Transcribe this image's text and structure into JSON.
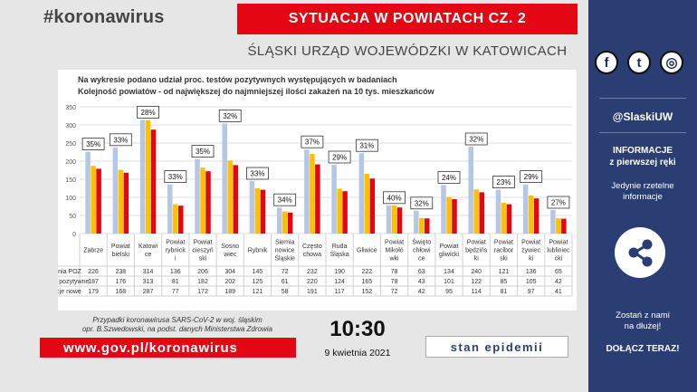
{
  "header": {
    "hashtag": "#koronawirus",
    "title": "SYTUACJA W POWIATACH  CZ. 2",
    "subtitle": "ŚLĄSKI URZĄD WOJEWÓDZKI W KATOWICACH"
  },
  "chart_data": {
    "type": "bar",
    "note_line1": "Na wykresie podano udział proc. testów pozytywnych występujących w badaniach",
    "note_line2": "Kolejność powiatów - od największej do najmniejszej ilości zakażeń na 10 tys. mieszkańców",
    "ylim": [
      0,
      350
    ],
    "yticks": [
      0,
      50,
      100,
      150,
      200,
      250,
      300,
      350
    ],
    "grid": true,
    "categories": [
      [
        "Zabrze"
      ],
      [
        "Powiat",
        "bielski"
      ],
      [
        "Katowi",
        "ce"
      ],
      [
        "Powiat",
        "rybnick",
        "i"
      ],
      [
        "Powiat",
        "cieszyń",
        "ski"
      ],
      [
        "Sosno",
        "wiec"
      ],
      [
        "Rybnik"
      ],
      [
        "Siemia",
        "nowice",
        "Śląskie"
      ],
      [
        "Często",
        "chowa"
      ],
      [
        "Ruda",
        "Śląska"
      ],
      [
        "Gliwice"
      ],
      [
        "Powiat",
        "Mikołó",
        "wki"
      ],
      [
        "Święto",
        "chłowi",
        "ce"
      ],
      [
        "Powiat",
        "gliwicki"
      ],
      [
        "Powiat",
        "będzińs",
        "ki"
      ],
      [
        "Powiat",
        "racibor",
        "ski"
      ],
      [
        "Powiat",
        "żywiec",
        "ki"
      ],
      [
        "Powiat",
        "lubliniec",
        "cki"
      ]
    ],
    "percent_labels": [
      "35%",
      "33%",
      "28%",
      "33%",
      "35%",
      "32%",
      "33%",
      "34%",
      "37%",
      "29%",
      "31%",
      "40%",
      "32%",
      "24%",
      "32%",
      "23%",
      "29%",
      "27%"
    ],
    "series": [
      {
        "name": "Zlecenia POZ",
        "color": "#b4c7e7",
        "values": [
          226,
          238,
          314,
          136,
          206,
          304,
          145,
          72,
          232,
          190,
          222,
          78,
          63,
          134,
          240,
          121,
          136,
          65
        ]
      },
      {
        "name": "Testy pozytywne",
        "color": "#ffc000",
        "values": [
          187,
          176,
          313,
          81,
          182,
          202,
          125,
          61,
          220,
          124,
          165,
          78,
          43,
          101,
          122,
          85,
          105,
          42
        ]
      },
      {
        "name": "Infekcje nowe",
        "color": "#e30613",
        "values": [
          179,
          168,
          287,
          77,
          172,
          189,
          121,
          58,
          191,
          117,
          152,
          72,
          42,
          95,
          114,
          81,
          97,
          41
        ]
      }
    ]
  },
  "sidebar": {
    "facebook_icon": "f",
    "twitter_icon": "t",
    "instagram_icon": "◎",
    "handle": "@SlaskiUW",
    "info_title_1": "INFORMACJE",
    "info_title_2": "z pierwszej ręki",
    "info_sub_1": "Jedynie rzetelne",
    "info_sub_2": "informacje",
    "join_1": "Zostań z nami",
    "join_2": "na dłużej!",
    "join_button": "DOŁĄCZ TERAZ!"
  },
  "footer": {
    "source_1": "Przypadki koronawirusa SARS-CoV-2 w woj. śląskim",
    "source_2": "opr. B.Szwedowski, na podst. danych Ministerstwa Zdrowia",
    "url": "www.gov.pl/koronawirus",
    "time": "10:30",
    "date": "9 kwietnia 2021",
    "epidemic": "stan epidemii"
  }
}
